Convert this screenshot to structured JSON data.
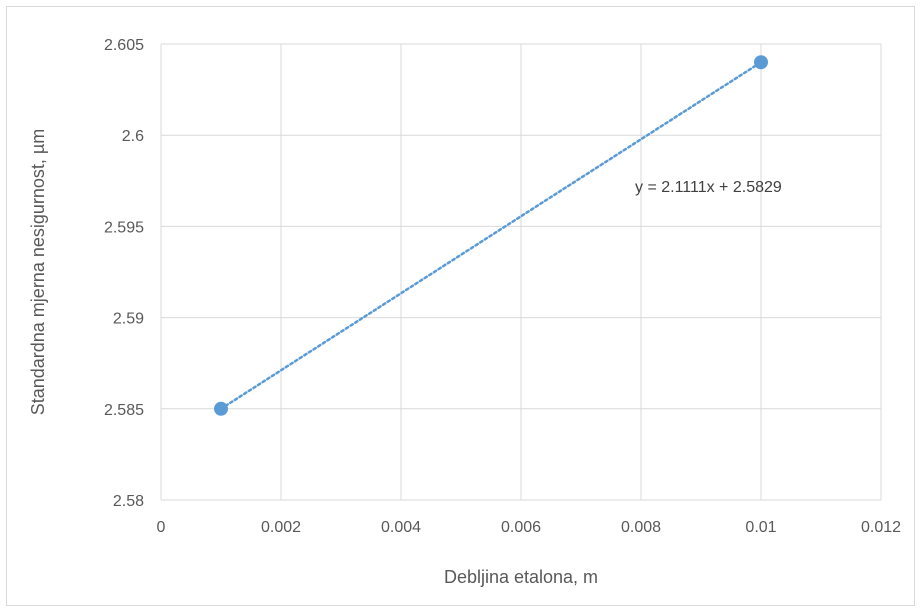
{
  "chart_data": {
    "type": "scatter",
    "title": "",
    "xlabel": "Debljina etalona, m",
    "ylabel": "Standardna mjerna nesigurnost, µm",
    "xlim": [
      0,
      0.012
    ],
    "ylim": [
      2.58,
      2.605
    ],
    "x_ticks": [
      "0",
      "0.002",
      "0.004",
      "0.006",
      "0.008",
      "0.01",
      "0.012"
    ],
    "y_ticks": [
      "2.58",
      "2.585",
      "2.59",
      "2.595",
      "2.6",
      "2.605"
    ],
    "grid": true,
    "legend": "none",
    "series": [
      {
        "points": [
          {
            "x": 0.001,
            "y": 2.585
          },
          {
            "x": 0.01,
            "y": 2.604
          }
        ],
        "color": "#5b9bd5",
        "trendline": {
          "type": "linear",
          "style": "dotted",
          "equation": "y = 2.1111x + 2.5829"
        }
      }
    ]
  }
}
